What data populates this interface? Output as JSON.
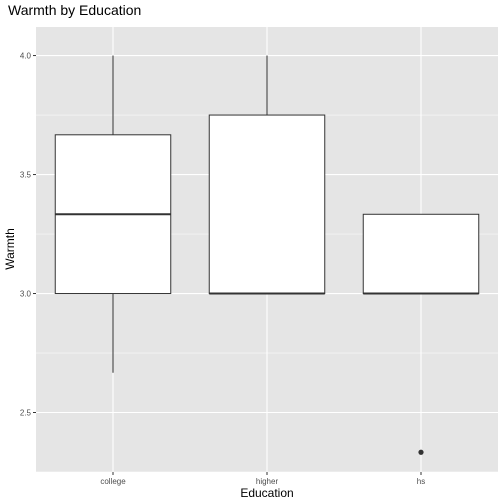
{
  "chart_data": {
    "type": "box",
    "title": "Warmth by Education",
    "xlabel": "Education",
    "ylabel": "Warmth",
    "categories": [
      "college",
      "higher",
      "hs"
    ],
    "ylim": [
      2.25,
      4.12
    ],
    "y_ticks": [
      2.5,
      3.0,
      3.5,
      4.0
    ],
    "y_tick_labels": [
      "2.5",
      "3.0",
      "3.5",
      "4.0"
    ],
    "boxes": [
      {
        "category": "college",
        "whisker_low": 2.667,
        "q1": 3.0,
        "median": 3.333,
        "q3": 3.667,
        "whisker_high": 4.0,
        "outliers": []
      },
      {
        "category": "higher",
        "whisker_low": 3.0,
        "q1": 3.0,
        "median": 3.0,
        "q3": 3.75,
        "whisker_high": 4.0,
        "outliers": []
      },
      {
        "category": "hs",
        "whisker_low": 3.0,
        "q1": 3.0,
        "median": 3.0,
        "q3": 3.333,
        "whisker_high": 3.333,
        "outliers": [
          2.333
        ]
      }
    ],
    "grid": true,
    "legend": "none",
    "colors": {
      "panel_bg": "#e5e5e5",
      "grid_major": "#ffffff",
      "box_fill": "#ffffff",
      "box_stroke": "#333333"
    }
  }
}
